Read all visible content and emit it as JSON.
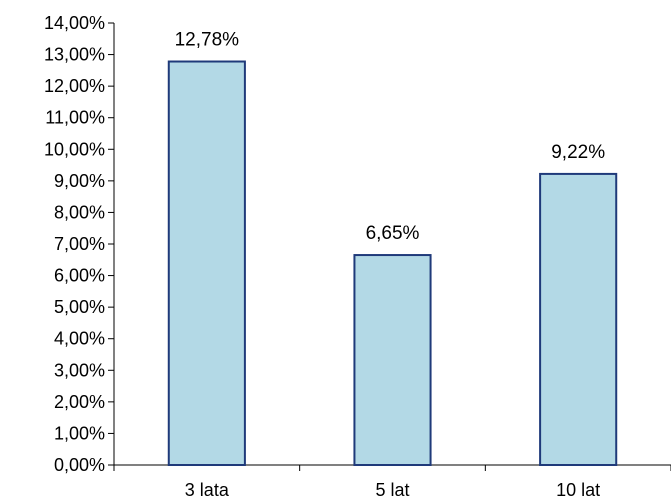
{
  "chart_data": {
    "type": "bar",
    "title": "",
    "xlabel": "",
    "ylabel": "",
    "categories": [
      "3 lata",
      "5 lat",
      "10 lat"
    ],
    "values": [
      12.78,
      6.65,
      9.22
    ],
    "data_labels": [
      "12,78%",
      "6,65%",
      "9,22%"
    ],
    "ylim": [
      0,
      14
    ],
    "y_step": 1,
    "y_ticks": [
      "0,00%",
      "1,00%",
      "2,00%",
      "3,00%",
      "4,00%",
      "5,00%",
      "6,00%",
      "7,00%",
      "8,00%",
      "9,00%",
      "10,00%",
      "11,00%",
      "12,00%",
      "13,00%",
      "14,00%"
    ],
    "grid": false,
    "legend": "none",
    "colors": {
      "bar_fill": "#b3d9e6",
      "bar_stroke": "#1f3a7a",
      "axis": "#000000"
    }
  }
}
